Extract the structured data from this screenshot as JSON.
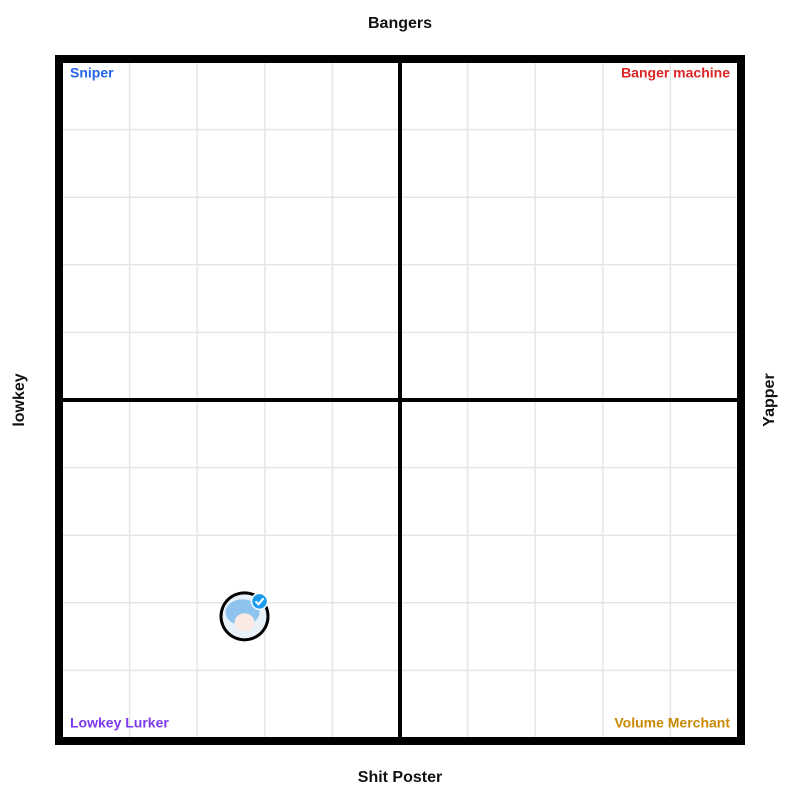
{
  "chart_data": {
    "type": "scatter",
    "top_label": "Bangers",
    "bottom_label": "Shit Poster",
    "left_label": "lowkey",
    "right_label": "Yapper",
    "quadrants": [
      {
        "label": "Sniper",
        "color": "#2563eb",
        "corner": "top-left"
      },
      {
        "label": "Banger machine",
        "color": "#dc2626",
        "corner": "top-right"
      },
      {
        "label": "Lowkey Lurker",
        "color": "#7c3aed",
        "corner": "bottom-left"
      },
      {
        "label": "Volume Merchant",
        "color": "#ca8a04",
        "corner": "bottom-right"
      }
    ],
    "xlim": [
      -5,
      5
    ],
    "ylim": [
      -5,
      5
    ],
    "xticks": [
      -4,
      -3,
      -2,
      -1,
      1,
      2,
      3,
      4
    ],
    "yticks": [
      -4,
      -3,
      -2,
      -1,
      1,
      2,
      3,
      4
    ],
    "grid": true,
    "points": [
      {
        "x": -2.3,
        "y": -3.2
      }
    ]
  }
}
